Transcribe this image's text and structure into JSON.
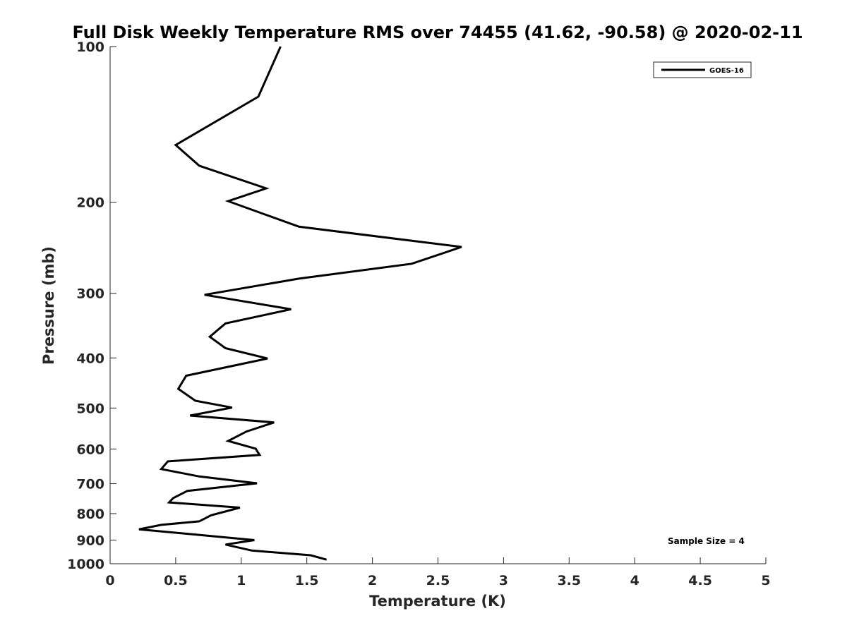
{
  "chart_data": {
    "type": "line",
    "title": "Full Disk Weekly Temperature RMS over 74455 (41.62, -90.58) @ 2020-02-11",
    "xlabel": "Temperature (K)",
    "ylabel": "Pressure (mb)",
    "xlim": [
      0,
      5
    ],
    "ylim": [
      1000,
      100
    ],
    "y_scale": "log",
    "x_ticks": [
      "0",
      "0.5",
      "1",
      "1.5",
      "2",
      "2.5",
      "3",
      "3.5",
      "4",
      "4.5",
      "5"
    ],
    "y_ticks": [
      "100",
      "200",
      "300",
      "400",
      "500",
      "600",
      "700",
      "800",
      "900",
      "1000"
    ],
    "legend_position": "top-right",
    "annotation": "Sample Size = 4",
    "series": [
      {
        "name": "GOES-16",
        "color": "#000000",
        "points": [
          [
            1.3,
            100
          ],
          [
            1.13,
            125
          ],
          [
            0.5,
            155
          ],
          [
            0.68,
            170
          ],
          [
            1.19,
            188
          ],
          [
            0.9,
            199
          ],
          [
            1.44,
            223
          ],
          [
            2.68,
            244
          ],
          [
            2.3,
            263
          ],
          [
            1.44,
            281
          ],
          [
            0.72,
            302
          ],
          [
            1.38,
            322
          ],
          [
            0.88,
            343
          ],
          [
            0.76,
            364
          ],
          [
            0.88,
            383
          ],
          [
            1.2,
            401
          ],
          [
            0.58,
            433
          ],
          [
            0.52,
            459
          ],
          [
            0.65,
            484
          ],
          [
            0.93,
            499
          ],
          [
            0.61,
            517
          ],
          [
            1.25,
            533
          ],
          [
            1.04,
            555
          ],
          [
            0.9,
            579
          ],
          [
            1.11,
            599
          ],
          [
            1.14,
            616
          ],
          [
            0.44,
            634
          ],
          [
            0.39,
            656
          ],
          [
            0.68,
            678
          ],
          [
            1.12,
            699
          ],
          [
            0.59,
            723
          ],
          [
            0.48,
            747
          ],
          [
            0.45,
            761
          ],
          [
            0.99,
            779
          ],
          [
            0.77,
            806
          ],
          [
            0.68,
            828
          ],
          [
            0.39,
            841
          ],
          [
            0.22,
            858
          ],
          [
            1.1,
            900
          ],
          [
            0.88,
            918
          ],
          [
            1.08,
            943
          ],
          [
            1.53,
            963
          ],
          [
            1.65,
            982
          ]
        ]
      }
    ]
  }
}
